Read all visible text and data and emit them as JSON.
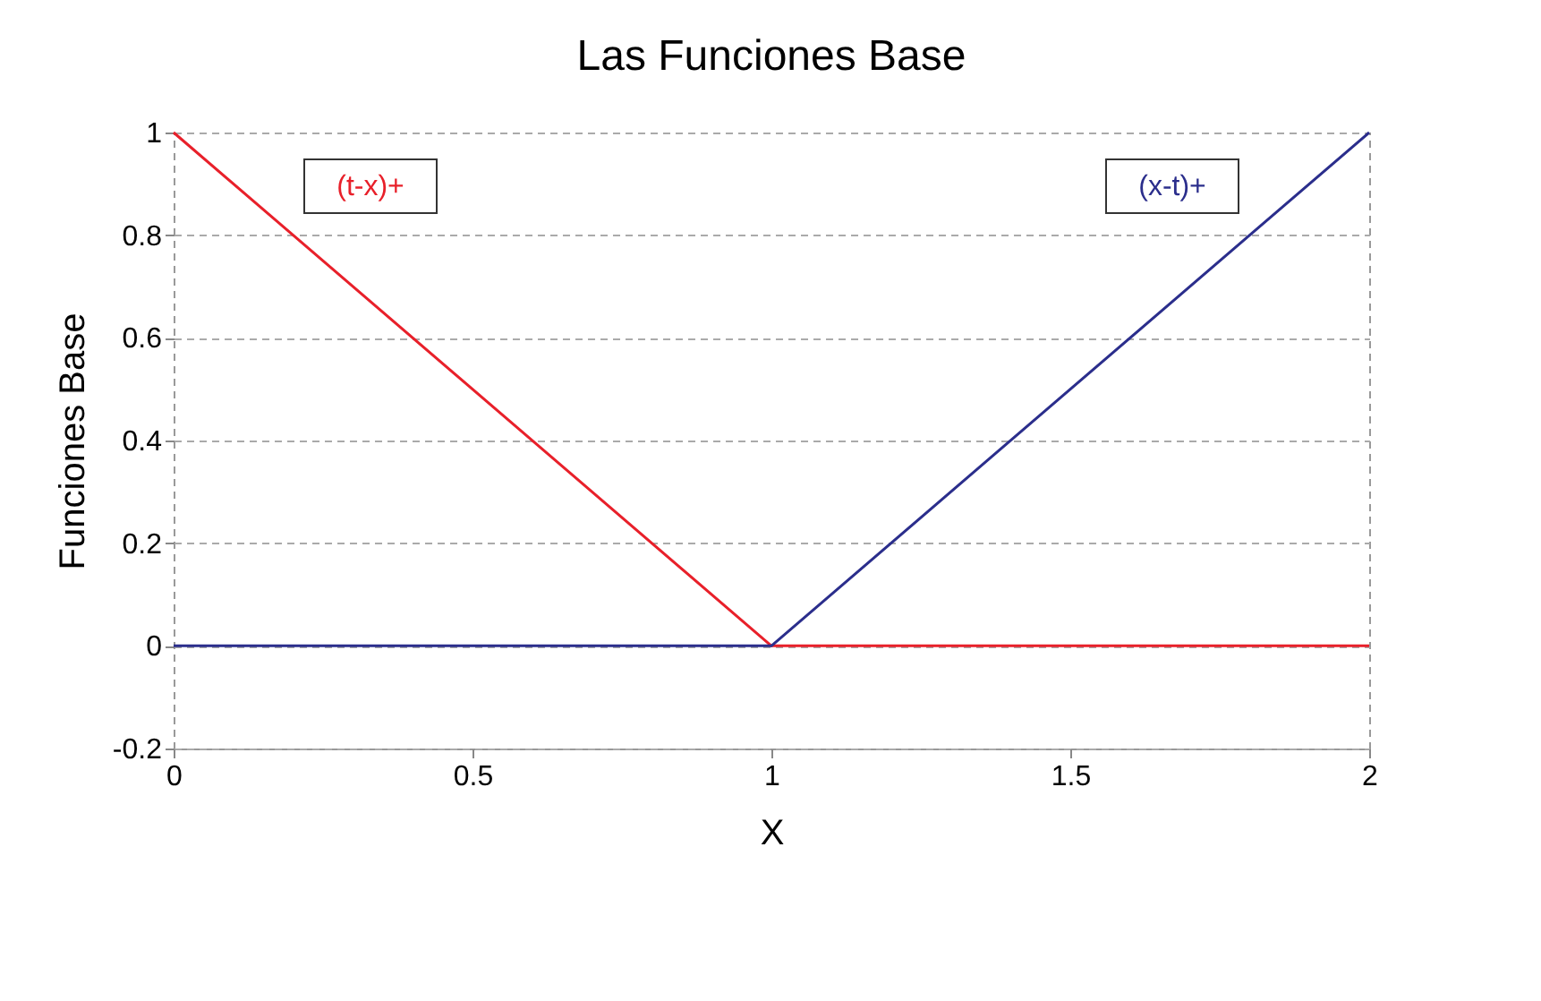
{
  "chart_data": {
    "type": "line",
    "title": "Las Funciones Base",
    "xlabel": "X",
    "ylabel": "Funciones Base",
    "x": [
      0,
      1,
      2
    ],
    "series": [
      {
        "name": "(t-x)+",
        "color": "#e8202a",
        "values": [
          1,
          0,
          0
        ]
      },
      {
        "name": "(x-t)+",
        "color": "#2b2e8c",
        "values": [
          0,
          0,
          1
        ]
      }
    ],
    "xlim": [
      0,
      2
    ],
    "xticks": [
      0,
      0.5,
      1,
      1.5,
      2
    ],
    "ylim": [
      -0.2,
      1
    ],
    "yticks": [
      -0.2,
      0,
      0.2,
      0.4,
      0.6,
      0.8,
      1
    ],
    "grid": "y",
    "legend": "top",
    "marker": "none",
    "line_style": "solid"
  }
}
